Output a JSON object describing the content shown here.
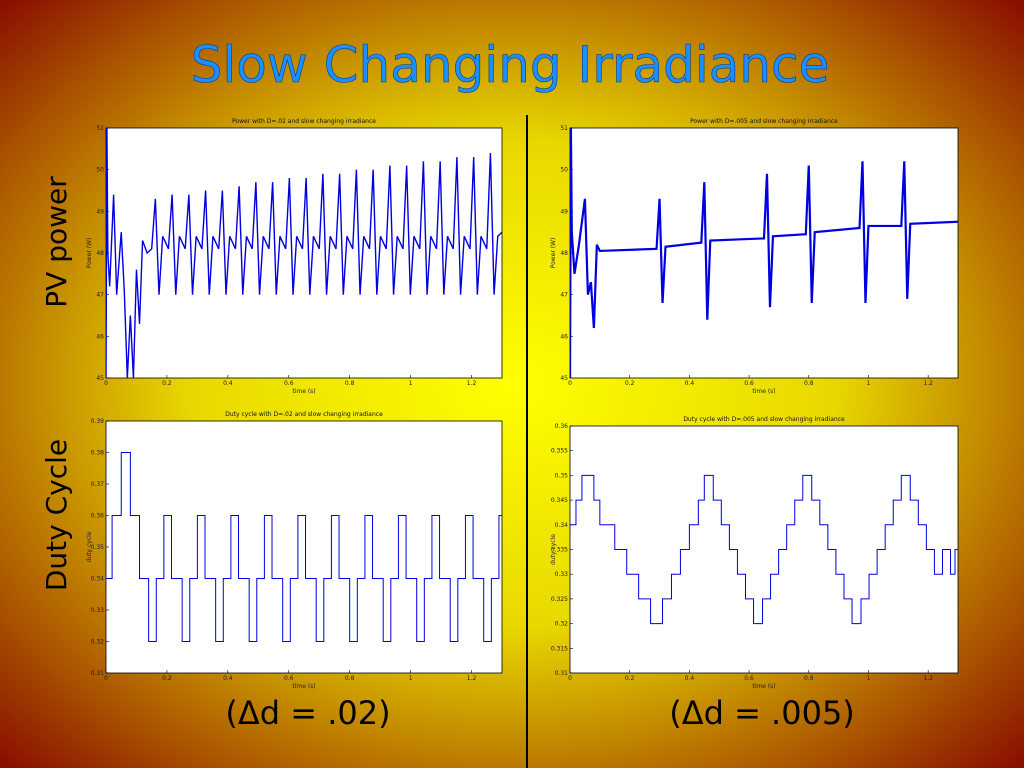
{
  "slide": {
    "title": "Slow Changing Irradiance",
    "row_labels": [
      "PV power",
      "Duty Cycle"
    ],
    "captions": [
      "(Δd = .02)",
      "(Δd = .005)"
    ]
  },
  "chart_data": [
    {
      "type": "line",
      "title": "Power with D=.02 and slow changing irradiance",
      "xlabel": "time (s)",
      "ylabel": "Power (W)",
      "color": "#0000e0",
      "xlim": [
        0,
        1.3
      ],
      "ylim": [
        45,
        51
      ],
      "xticks": [
        0,
        0.2,
        0.4,
        0.6,
        0.8,
        1,
        1.2
      ],
      "yticks": [
        45,
        46,
        47,
        48,
        49,
        50,
        51
      ],
      "x": [
        0,
        0.003,
        0.006,
        0.012,
        0.025,
        0.035,
        0.05,
        0.06,
        0.07,
        0.08,
        0.09,
        0.1,
        0.11,
        0.12,
        0.135,
        0.15,
        0.162,
        0.174,
        0.186,
        0.205,
        0.217,
        0.229,
        0.241,
        0.26,
        0.272,
        0.284,
        0.296,
        0.315,
        0.327,
        0.339,
        0.351,
        0.37,
        0.382,
        0.394,
        0.406,
        0.425,
        0.437,
        0.449,
        0.461,
        0.48,
        0.492,
        0.504,
        0.516,
        0.535,
        0.547,
        0.559,
        0.571,
        0.59,
        0.602,
        0.614,
        0.626,
        0.645,
        0.657,
        0.669,
        0.681,
        0.7,
        0.712,
        0.724,
        0.736,
        0.755,
        0.767,
        0.779,
        0.791,
        0.81,
        0.822,
        0.834,
        0.846,
        0.865,
        0.877,
        0.889,
        0.901,
        0.92,
        0.932,
        0.944,
        0.956,
        0.975,
        0.987,
        0.999,
        1.011,
        1.03,
        1.042,
        1.054,
        1.066,
        1.085,
        1.097,
        1.109,
        1.121,
        1.14,
        1.152,
        1.164,
        1.176,
        1.195,
        1.207,
        1.219,
        1.231,
        1.25,
        1.262,
        1.274,
        1.286,
        1.3
      ],
      "values": [
        45,
        51,
        48,
        47.2,
        49.4,
        47,
        48.5,
        47.1,
        45,
        46.5,
        45,
        47.6,
        46.3,
        48.3,
        48,
        48.1,
        49.3,
        47,
        48.4,
        48.1,
        49.4,
        47,
        48.4,
        48.1,
        49.4,
        47,
        48.4,
        48.1,
        49.5,
        47,
        48.4,
        48.1,
        49.5,
        47,
        48.4,
        48.1,
        49.6,
        47,
        48.4,
        48.1,
        49.7,
        47,
        48.4,
        48.1,
        49.7,
        47,
        48.4,
        48.1,
        49.8,
        47,
        48.4,
        48.1,
        49.8,
        47,
        48.4,
        48.1,
        49.9,
        47,
        48.4,
        48.1,
        49.9,
        47,
        48.4,
        48.1,
        50,
        47,
        48.4,
        48.1,
        50,
        47,
        48.4,
        48.1,
        50.1,
        47,
        48.4,
        48.1,
        50.1,
        47,
        48.4,
        48.1,
        50.2,
        47,
        48.4,
        48.1,
        50.2,
        47,
        48.4,
        48.1,
        50.3,
        47,
        48.4,
        48.1,
        50.3,
        47,
        48.4,
        48.1,
        50.4,
        47,
        48.4,
        48.5
      ]
    },
    {
      "type": "line",
      "title": "Power with D=.005 and slow changing irradiance",
      "xlabel": "time (s)",
      "ylabel": "Power (W)",
      "color": "#0000e0",
      "xlim": [
        0,
        1.3
      ],
      "ylim": [
        45,
        51
      ],
      "xticks": [
        0,
        0.2,
        0.4,
        0.6,
        0.8,
        1,
        1.2
      ],
      "yticks": [
        45,
        46,
        47,
        48,
        49,
        50,
        51
      ],
      "x": [
        0,
        0.003,
        0.006,
        0.015,
        0.03,
        0.05,
        0.06,
        0.07,
        0.08,
        0.09,
        0.1,
        0.29,
        0.3,
        0.31,
        0.32,
        0.44,
        0.45,
        0.46,
        0.47,
        0.65,
        0.66,
        0.67,
        0.68,
        0.79,
        0.8,
        0.81,
        0.82,
        0.97,
        0.98,
        0.99,
        1.0,
        1.11,
        1.12,
        1.13,
        1.14,
        1.3
      ],
      "values": [
        45,
        51,
        48.5,
        47.5,
        48.2,
        49.3,
        47,
        47.3,
        46.2,
        48.2,
        48.05,
        48.1,
        49.3,
        46.8,
        48.15,
        48.25,
        49.7,
        46.4,
        48.3,
        48.35,
        49.9,
        46.7,
        48.4,
        48.45,
        50.1,
        46.8,
        48.5,
        48.6,
        50.2,
        46.8,
        48.65,
        48.65,
        50.2,
        46.9,
        48.7,
        48.75
      ]
    },
    {
      "type": "step",
      "title": "Duty cycle with D=.02 and slow changing irradiance",
      "xlabel": "time (s)",
      "ylabel": "duty cycle",
      "color": "#0000e0",
      "xlim": [
        0,
        1.3
      ],
      "ylim": [
        0.31,
        0.39
      ],
      "xticks": [
        0,
        0.2,
        0.4,
        0.6,
        0.8,
        1,
        1.2
      ],
      "yticks": [
        0.31,
        0.32,
        0.33,
        0.34,
        0.35,
        0.36,
        0.37,
        0.38,
        0.39
      ],
      "x": [
        0,
        0.02,
        0.05,
        0.08,
        0.11,
        0.14,
        0.165,
        0.19,
        0.215,
        0.25,
        0.275,
        0.3,
        0.325,
        0.36,
        0.385,
        0.41,
        0.435,
        0.47,
        0.495,
        0.52,
        0.545,
        0.58,
        0.605,
        0.63,
        0.655,
        0.69,
        0.715,
        0.74,
        0.765,
        0.8,
        0.825,
        0.85,
        0.875,
        0.91,
        0.935,
        0.96,
        0.985,
        1.02,
        1.045,
        1.07,
        1.095,
        1.13,
        1.155,
        1.18,
        1.205,
        1.24,
        1.265,
        1.29
      ],
      "values": [
        0.34,
        0.36,
        0.38,
        0.36,
        0.34,
        0.32,
        0.34,
        0.36,
        0.34,
        0.32,
        0.34,
        0.36,
        0.34,
        0.32,
        0.34,
        0.36,
        0.34,
        0.32,
        0.34,
        0.36,
        0.34,
        0.32,
        0.34,
        0.36,
        0.34,
        0.32,
        0.34,
        0.36,
        0.34,
        0.32,
        0.34,
        0.36,
        0.34,
        0.32,
        0.34,
        0.36,
        0.34,
        0.32,
        0.34,
        0.36,
        0.34,
        0.32,
        0.34,
        0.36,
        0.34,
        0.32,
        0.34,
        0.36
      ]
    },
    {
      "type": "step",
      "title": "Duty cycle with D=.005 and slow changing irradiance",
      "xlabel": "time (s)",
      "ylabel": "duty cycle",
      "color": "#0000e0",
      "xlim": [
        0,
        1.3
      ],
      "ylim": [
        0.31,
        0.36
      ],
      "xticks": [
        0,
        0.2,
        0.4,
        0.6,
        0.8,
        1,
        1.2
      ],
      "yticks": [
        0.31,
        0.315,
        0.32,
        0.325,
        0.33,
        0.335,
        0.34,
        0.345,
        0.35,
        0.355,
        0.36
      ],
      "x": [
        0,
        0.02,
        0.04,
        0.08,
        0.1,
        0.15,
        0.19,
        0.23,
        0.27,
        0.31,
        0.34,
        0.37,
        0.4,
        0.43,
        0.45,
        0.48,
        0.507,
        0.534,
        0.561,
        0.588,
        0.615,
        0.645,
        0.672,
        0.699,
        0.726,
        0.753,
        0.78,
        0.81,
        0.837,
        0.864,
        0.891,
        0.918,
        0.945,
        0.975,
        1.002,
        1.029,
        1.056,
        1.083,
        1.11,
        1.14,
        1.167,
        1.194,
        1.221,
        1.248,
        1.275,
        1.29
      ],
      "values": [
        0.34,
        0.345,
        0.35,
        0.345,
        0.34,
        0.335,
        0.33,
        0.325,
        0.32,
        0.325,
        0.33,
        0.335,
        0.34,
        0.345,
        0.35,
        0.345,
        0.34,
        0.335,
        0.33,
        0.325,
        0.32,
        0.325,
        0.33,
        0.335,
        0.34,
        0.345,
        0.35,
        0.345,
        0.34,
        0.335,
        0.33,
        0.325,
        0.32,
        0.325,
        0.33,
        0.335,
        0.34,
        0.345,
        0.35,
        0.345,
        0.34,
        0.335,
        0.33,
        0.335,
        0.33,
        0.335
      ]
    }
  ]
}
